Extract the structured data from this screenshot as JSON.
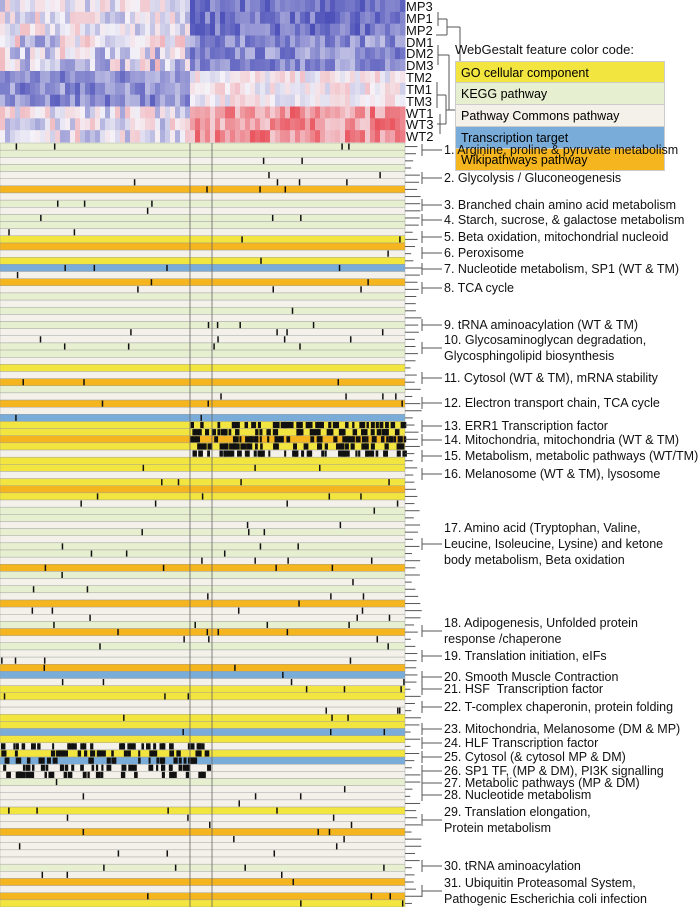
{
  "samples": [
    "MP3",
    "MP1",
    "MP2",
    "DM1",
    "DM2",
    "DM3",
    "TM2",
    "TM1",
    "TM3",
    "WT1",
    "WT3",
    "WT2"
  ],
  "legend": {
    "title": "WebGestalt feature color code:",
    "items": [
      {
        "code": "G",
        "label": "GO cellular component",
        "color": "#f3e53f"
      },
      {
        "code": "K",
        "label": "KEGG pathway",
        "color": "#e6efcf"
      },
      {
        "code": "P",
        "label": "Pathway Commons pathway",
        "color": "#f3f1e9"
      },
      {
        "code": "T",
        "label": "Transcription target",
        "color": "#79acd9"
      },
      {
        "code": "W",
        "label": "Wikipathways pathway",
        "color": "#f4b51f"
      }
    ]
  },
  "heatmap_colors": {
    "low": "#4b4fb8",
    "mid": "#f5f3f8",
    "high": "#e8404a"
  },
  "feature_rows": "KKPKPPWPKPKKPGWPGTPWPKPKPKPPKKPGPWKPWPTGGWGPGGPGWGPKKPKPKKPWKPKPWPPKWPKPPWTPGGPPGGTGPGTPPKPPPGPPWPPPPKPWPWG",
  "clusters": [
    "1. Arginine, proline & pyruvate metabolism",
    "2. Glycolysis / Gluconeogenesis",
    "3. Branched chain amino acid metabolism",
    "4. Starch, sucrose, & galactose metabolism",
    "5. Beta oxidation, mitochondrial nucleoid",
    "6. Peroxisome",
    "7. Nucleotide metabolism, SP1 (WT & TM)",
    "8. TCA cycle",
    "9. tRNA aminoacylation (WT & TM)",
    "10. Glycosaminoglycan degradation,\nGlycosphingolipid biosynthesis",
    "11. Cytosol (WT & TM), mRNA stability",
    "12. Electron transport chain, TCA cycle",
    "13. ERR1 Transcription factor",
    "14. Mitochondria, mitochondria (WT & TM)",
    "15. Metabolism, metabolic pathways (WT/TM)",
    "16. Melanosome (WT & TM), lysosome",
    "17. Amino acid (Tryptophan, Valine,\nLeucine, Isoleucine, Lysine) and ketone\nbody metabolism, Beta oxidation",
    "18. Adipogenesis, Unfolded protein\nresponse /chaperone",
    "19. Translation initiation, eIFs",
    "20. Smooth Muscle Contraction",
    "21. HSF  Transcription factor",
    "22. T-complex chaperonin, protein folding",
    "23. Mitochondria, Melanosome (DM & MP)",
    "24. HLF Transcription factor",
    "25. Cytosol (& cytosol MP & DM)",
    "26. SP1 TF, (MP & DM), PI3K signalling",
    "27. Metabolic pathways (MP & DM)",
    "28. Nucleotide metabolism",
    "29. Translation elongation,\nProtein metabolism",
    "30. tRNA aminoacylation",
    "31. Ubiquitin Proteasomal System,\nPathogenic Escherichia coli infection"
  ]
}
